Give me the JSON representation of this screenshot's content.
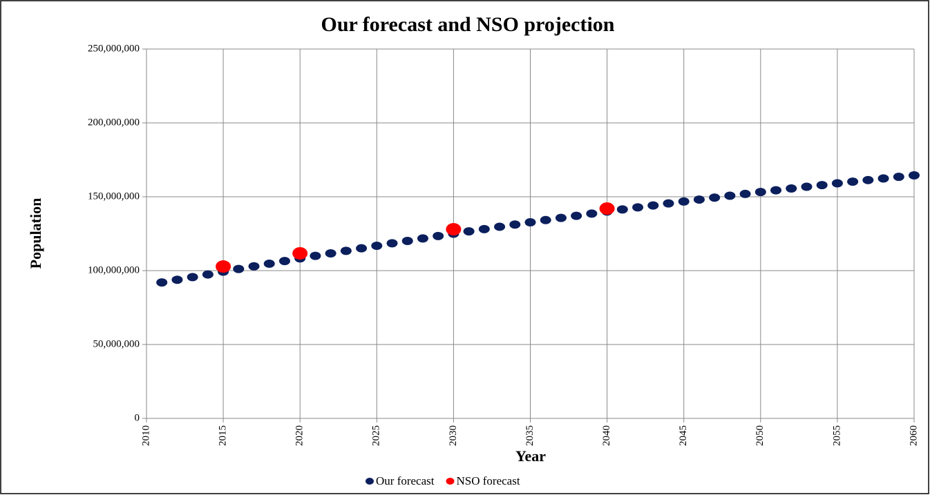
{
  "chart_data": {
    "type": "scatter",
    "title": "Our forecast and NSO projection",
    "x_label": "Year",
    "y_label": "Population",
    "xlim": [
      2010,
      2060
    ],
    "xticks": [
      2010,
      2015,
      2020,
      2025,
      2030,
      2035,
      2040,
      2045,
      2050,
      2055,
      2060
    ],
    "ylim": [
      0,
      250000000
    ],
    "yticks": [
      0,
      {
        "value": 50000000,
        "label": "50,000,000"
      },
      {
        "value": 100000000,
        "label": "100,000,000"
      },
      {
        "value": 150000000,
        "label": "150,000,000"
      },
      {
        "value": 200000000,
        "label": "200,000,000"
      },
      {
        "value": 250000000,
        "label": "250,000,000"
      }
    ],
    "grid": true,
    "legend": "bottom",
    "series": [
      {
        "name": "Our forecast",
        "color": "#0b1f5c",
        "x": [
          2011,
          2012,
          2013,
          2014,
          2015,
          2016,
          2017,
          2018,
          2019,
          2020,
          2021,
          2022,
          2023,
          2024,
          2025,
          2026,
          2027,
          2028,
          2029,
          2030,
          2031,
          2032,
          2033,
          2034,
          2035,
          2036,
          2037,
          2038,
          2039,
          2040,
          2041,
          2042,
          2043,
          2044,
          2045,
          2046,
          2047,
          2048,
          2049,
          2050,
          2051,
          2052,
          2053,
          2054,
          2055,
          2056,
          2057,
          2058,
          2059,
          2060
        ],
        "values": [
          92000000,
          93800000,
          95600000,
          97400000,
          99300000,
          101100000,
          102900000,
          104700000,
          106500000,
          108300000,
          110000000,
          111700000,
          113400000,
          115100000,
          116800000,
          118500000,
          120100000,
          121800000,
          123400000,
          125000000,
          126600000,
          128100000,
          129700000,
          131200000,
          132700000,
          134200000,
          135700000,
          137100000,
          138600000,
          140000000,
          141400000,
          142800000,
          144100000,
          145500000,
          146800000,
          148100000,
          149400000,
          150700000,
          151900000,
          153200000,
          154400000,
          155600000,
          156800000,
          157900000,
          159100000,
          160200000,
          161300000,
          162400000,
          163500000,
          164500000
        ]
      },
      {
        "name": "NSO forecast",
        "color": "#ff0000",
        "x": [
          2015,
          2020,
          2030,
          2040
        ],
        "values": [
          102800000,
          111700000,
          128000000,
          142000000
        ]
      }
    ]
  }
}
